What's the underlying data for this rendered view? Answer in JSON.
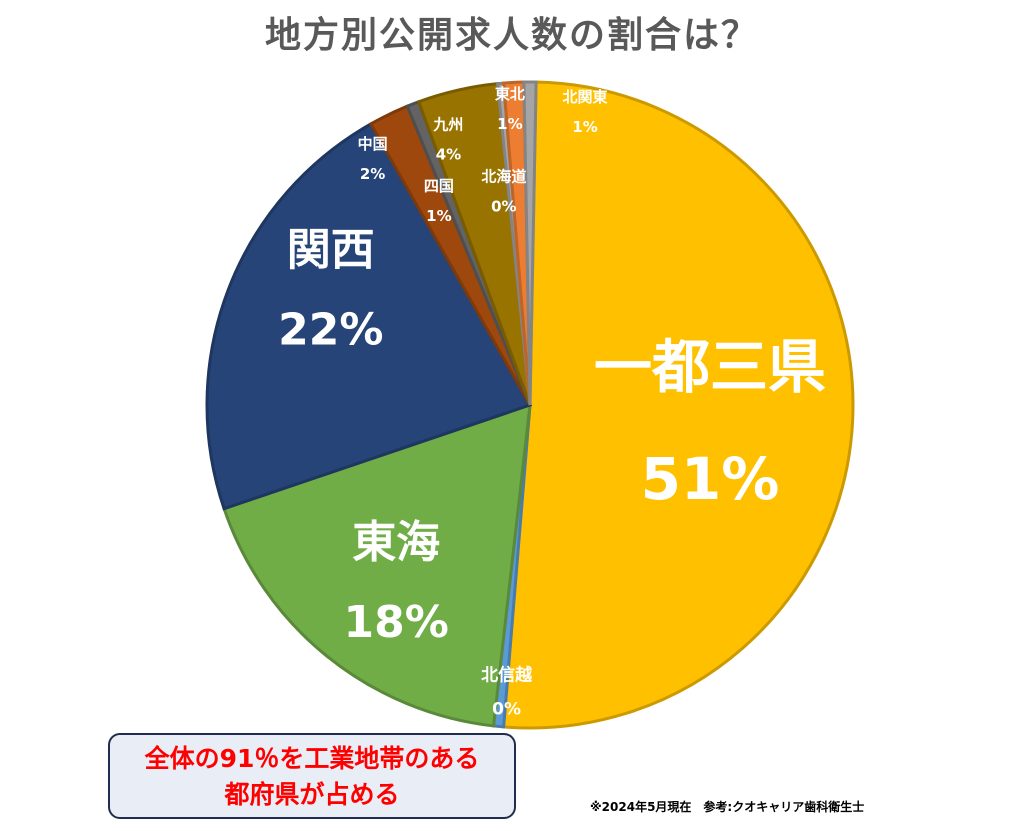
{
  "chart_data": {
    "type": "pie",
    "title": "地方別公開求人数の割合は？",
    "slices": [
      {
        "label": "一都三県",
        "value": 51,
        "value_label": "51%",
        "color": "#FFC000"
      },
      {
        "label": "北信越",
        "value": 0.5,
        "value_label": "0%",
        "color": "#5B9BD5"
      },
      {
        "label": "東海",
        "value": 18,
        "value_label": "18%",
        "color": "#70AD47"
      },
      {
        "label": "関西",
        "value": 22,
        "value_label": "22%",
        "color": "#264478"
      },
      {
        "label": "中国",
        "value": 2,
        "value_label": "2%",
        "color": "#9E480E"
      },
      {
        "label": "四国",
        "value": 0.6,
        "value_label": "1%",
        "color": "#636363"
      },
      {
        "label": "九州",
        "value": 4,
        "value_label": "4%",
        "color": "#997300"
      },
      {
        "label": "北海道",
        "value": 0.3,
        "value_label": "0%",
        "color": "#A5A5A5"
      },
      {
        "label": "東北",
        "value": 1,
        "value_label": "1%",
        "color": "#ED7D31"
      },
      {
        "label": "北関東",
        "value": 0.6,
        "value_label": "1%",
        "color": "#A5A5A5"
      }
    ]
  },
  "callout": {
    "line1": "全体の91％を工業地帯のある",
    "line2": "都府県が占める"
  },
  "footnote": "※2024年5月現在　参考:クオキャリア歯科衛生士"
}
